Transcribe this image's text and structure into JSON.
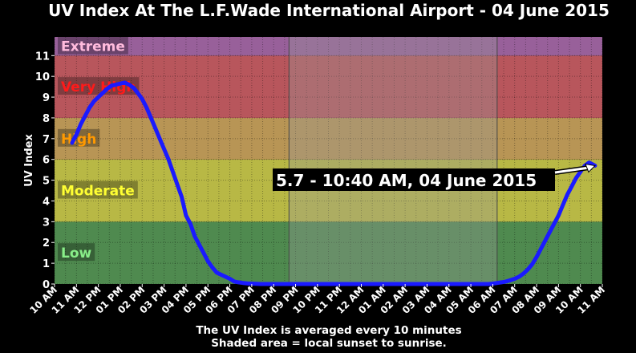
{
  "chart_data": {
    "type": "line",
    "title": "UV Index At The L.F.Wade International Airport - 04 June 2015",
    "ylabel": "UV Index",
    "xlabel": "",
    "ylim": [
      0,
      11.9
    ],
    "yticks": [
      0,
      1,
      2,
      3,
      4,
      5,
      6,
      7,
      8,
      9,
      10,
      11
    ],
    "grid": true,
    "xticks": [
      "10 AM",
      "11 AM",
      "12 PM",
      "01 PM",
      "02 PM",
      "03 PM",
      "04 PM",
      "05 PM",
      "06 PM",
      "07 PM",
      "08 PM",
      "09 PM",
      "10 PM",
      "11 PM",
      "12 AM",
      "01 AM",
      "02 AM",
      "03 AM",
      "04 AM",
      "05 AM",
      "06 AM",
      "07 AM",
      "08 AM",
      "09 AM",
      "10 AM",
      "11 AM"
    ],
    "x_unit": "hours after 10 AM",
    "bands": [
      {
        "label": "Low",
        "from": 0,
        "to": 3,
        "color": "#4f8a4f",
        "label_color": "#88ee88"
      },
      {
        "label": "Moderate",
        "from": 3,
        "to": 6,
        "color": "#b8b845",
        "label_color": "#ffff33"
      },
      {
        "label": "High",
        "from": 6,
        "to": 8,
        "color": "#b89555",
        "label_color": "#ff9900"
      },
      {
        "label": "Very High",
        "from": 8,
        "to": 11,
        "color": "#b8565c",
        "label_color": "#ff1a1a"
      },
      {
        "label": "Extreme",
        "from": 11,
        "to": 11.9,
        "color": "#98609a",
        "label_color": "#ffbbdd"
      }
    ],
    "night_shading": {
      "from": 10.7,
      "to": 20.2
    },
    "series": [
      {
        "color": "#1a1aff",
        "x": [
          0.8,
          1.0,
          1.2,
          1.4,
          1.6,
          1.8,
          2.0,
          2.2,
          2.4,
          2.6,
          2.8,
          3.0,
          3.2,
          3.4,
          3.6,
          3.8,
          4.0,
          4.2,
          4.4,
          4.6,
          4.8,
          5.0,
          5.2,
          5.4,
          5.6,
          5.8,
          6.0,
          6.2,
          6.4,
          6.6,
          6.8,
          7.0,
          7.2,
          7.4,
          7.6,
          7.8,
          8.0,
          8.2,
          8.4,
          8.6,
          8.8,
          9.0,
          9.2,
          9.4,
          9.6,
          9.8,
          10.0,
          10.2,
          10.4,
          10.6,
          10.8,
          11.0,
          12.0,
          14.0,
          16.0,
          18.0,
          19.8,
          20.0,
          20.2,
          20.4,
          20.6,
          20.8,
          21.0,
          21.2,
          21.4,
          21.6,
          21.8,
          22.0,
          22.2,
          22.4,
          22.6,
          22.8,
          23.0,
          23.2,
          23.4,
          23.6,
          23.8,
          24.0,
          24.2,
          24.4,
          24.667
        ],
        "y": [
          6.8,
          7.2,
          7.7,
          8.1,
          8.5,
          8.8,
          9.0,
          9.2,
          9.4,
          9.55,
          9.6,
          9.65,
          9.7,
          9.6,
          9.45,
          9.2,
          8.9,
          8.5,
          8.0,
          7.5,
          7.0,
          6.5,
          6.0,
          5.4,
          4.8,
          4.2,
          3.3,
          2.9,
          2.3,
          1.9,
          1.5,
          1.1,
          0.8,
          0.55,
          0.45,
          0.35,
          0.25,
          0.12,
          0.08,
          0.05,
          0.03,
          0.02,
          0.01,
          0.0,
          0.0,
          0.0,
          0.0,
          0.0,
          0.0,
          0.0,
          0.0,
          0.0,
          0.0,
          0.0,
          0.0,
          0.0,
          0.0,
          0.02,
          0.05,
          0.08,
          0.12,
          0.18,
          0.25,
          0.35,
          0.5,
          0.7,
          0.95,
          1.3,
          1.7,
          2.1,
          2.5,
          2.9,
          3.3,
          3.8,
          4.3,
          4.7,
          5.1,
          5.4,
          5.7,
          5.85,
          5.7
        ]
      }
    ],
    "annotation": {
      "text": "5.7 - 10:40 AM, 04 June 2015",
      "x": 24.667,
      "y": 5.7
    },
    "footnotes": [
      "The UV Index is averaged every 10 minutes",
      "Shaded area = local sunset to sunrise."
    ]
  }
}
